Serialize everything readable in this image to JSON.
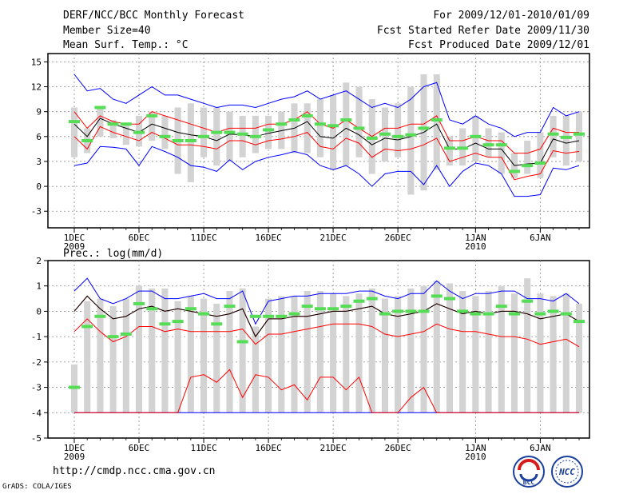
{
  "header": {
    "title": "DERF/NCC/BCC Monthly Forecast",
    "member_size": "Member Size=40",
    "variable": "Mean Surf. Temp.: °C",
    "period": "For 2009/12/01-2010/01/09",
    "start": "Fcst Started Refer Date 2009/11/30",
    "produced": "Fcst Produced Date 2009/12/01"
  },
  "footer": {
    "url": "http://cmdp.ncc.cma.gov.cn",
    "credit": "GrADS: COLA/IGES",
    "logo_bcc": "BCC",
    "logo_ncc": "NCC"
  },
  "colors": {
    "max": "#0000ff",
    "spread": "#ff0000",
    "mean": "#000000",
    "box": "#d3d3d3",
    "obs": "#55dd55"
  },
  "chart_data": [
    {
      "type": "line",
      "subtitle": "",
      "xlabel": "",
      "ylabel": "Mean Surf. Temp. (°C)",
      "ylim": [
        -5,
        16
      ],
      "yticks": [
        -3,
        0,
        3,
        6,
        9,
        12,
        15
      ],
      "x": [
        1,
        2,
        3,
        4,
        5,
        6,
        7,
        8,
        9,
        10,
        11,
        12,
        13,
        14,
        15,
        16,
        17,
        18,
        19,
        20,
        21,
        22,
        23,
        24,
        25,
        26,
        27,
        28,
        29,
        30,
        31,
        32,
        33,
        34,
        35,
        36,
        37,
        38,
        39,
        40
      ],
      "x_tick_labels": [
        {
          "day": 1,
          "label": "1DEC",
          "year": "2009"
        },
        {
          "day": 6,
          "label": "6DEC"
        },
        {
          "day": 11,
          "label": "11DEC"
        },
        {
          "day": 16,
          "label": "16DEC"
        },
        {
          "day": 21,
          "label": "21DEC"
        },
        {
          "day": 26,
          "label": "26DEC"
        },
        {
          "day": 32,
          "label": "1JAN",
          "year": "2010"
        },
        {
          "day": 37,
          "label": "6JAN"
        }
      ],
      "grid": true,
      "series": [
        {
          "name": "ensemble max",
          "color": "#0000ff",
          "values": [
            13.5,
            11.5,
            11.8,
            10.5,
            10.0,
            11.0,
            12.0,
            11.0,
            11.0,
            10.5,
            10.0,
            9.5,
            9.8,
            9.8,
            9.5,
            10.0,
            10.5,
            10.8,
            11.5,
            10.5,
            11.0,
            11.5,
            10.5,
            9.5,
            10.0,
            9.5,
            10.5,
            12.0,
            12.5,
            8.0,
            7.5,
            8.5,
            7.5,
            7.0,
            6.0,
            6.5,
            6.5,
            9.5,
            8.5,
            9.0
          ]
        },
        {
          "name": "upper spread",
          "color": "#ff0000",
          "values": [
            9.0,
            7.0,
            8.5,
            7.8,
            7.5,
            7.5,
            9.0,
            8.5,
            8.0,
            7.5,
            7.0,
            6.5,
            7.0,
            7.0,
            7.0,
            7.5,
            7.5,
            8.0,
            9.0,
            7.5,
            7.0,
            8.0,
            7.0,
            6.0,
            7.0,
            7.0,
            7.5,
            7.5,
            8.5,
            5.5,
            5.5,
            6.0,
            5.5,
            5.5,
            4.0,
            4.0,
            4.5,
            7.0,
            6.5,
            6.5
          ]
        },
        {
          "name": "ensemble mean",
          "color": "#000000",
          "values": [
            7.5,
            6.0,
            8.2,
            7.5,
            7.0,
            6.5,
            7.5,
            7.0,
            6.5,
            6.2,
            6.0,
            5.5,
            6.3,
            6.2,
            6.0,
            6.4,
            6.7,
            7.0,
            7.8,
            6.0,
            5.8,
            7.0,
            6.2,
            5.0,
            5.8,
            5.6,
            6.0,
            6.5,
            7.5,
            4.5,
            4.5,
            5.2,
            4.5,
            4.5,
            2.5,
            2.7,
            2.8,
            5.7,
            5.2,
            5.5
          ]
        },
        {
          "name": "lower spread",
          "color": "#ff0000",
          "values": [
            6.0,
            4.5,
            7.2,
            6.5,
            6.0,
            5.5,
            6.5,
            5.8,
            5.0,
            5.0,
            4.8,
            4.5,
            5.5,
            5.5,
            5.0,
            5.5,
            5.7,
            6.0,
            6.5,
            4.8,
            4.5,
            5.8,
            5.2,
            3.5,
            4.5,
            4.3,
            4.5,
            5.0,
            5.8,
            3.0,
            3.5,
            4.0,
            3.5,
            3.5,
            0.8,
            1.2,
            1.5,
            4.3,
            4.0,
            4.2
          ]
        },
        {
          "name": "ensemble min",
          "color": "#0000ff",
          "values": [
            2.5,
            2.8,
            4.8,
            4.7,
            4.5,
            2.5,
            4.8,
            4.2,
            3.5,
            2.5,
            2.3,
            1.8,
            3.2,
            2.0,
            3.0,
            3.5,
            3.8,
            4.2,
            3.8,
            2.5,
            2.0,
            2.5,
            1.5,
            0.0,
            1.5,
            1.8,
            1.8,
            0.2,
            2.5,
            0.0,
            1.8,
            2.8,
            2.5,
            1.5,
            -1.2,
            -1.2,
            -1.0,
            2.2,
            2.0,
            2.5
          ]
        }
      ],
      "boxes": {
        "name": "ensemble range box",
        "low": [
          3.5,
          4.0,
          6.0,
          5.8,
          5.0,
          4.8,
          5.5,
          4.5,
          1.5,
          0.5,
          3.5,
          2.5,
          3.0,
          3.5,
          4.0,
          4.5,
          4.5,
          4.0,
          4.0,
          3.5,
          2.0,
          2.5,
          3.5,
          1.5,
          3.0,
          3.5,
          -1.0,
          -0.5,
          2.0,
          2.5,
          2.5,
          3.0,
          3.5,
          1.5,
          1.0,
          1.5,
          1.0,
          3.5,
          2.5,
          3.0
        ],
        "high": [
          9.5,
          7.0,
          9.5,
          8.0,
          7.5,
          8.5,
          9.0,
          8.5,
          9.5,
          10.0,
          9.5,
          9.5,
          9.0,
          8.5,
          8.5,
          8.5,
          9.0,
          10.0,
          10.0,
          10.5,
          11.0,
          12.5,
          12.0,
          10.5,
          9.5,
          10.0,
          12.0,
          13.5,
          13.5,
          6.0,
          7.0,
          8.5,
          7.0,
          6.5,
          4.0,
          5.5,
          6.5,
          8.5,
          8.5,
          9.0
        ]
      },
      "observed": {
        "name": "observation",
        "values": [
          7.8,
          5.5,
          9.5,
          7.5,
          7.5,
          6.5,
          8.5,
          6.0,
          5.5,
          5.5,
          6.0,
          6.5,
          6.5,
          6.3,
          6.0,
          6.8,
          7.5,
          8.0,
          8.5,
          7.5,
          7.3,
          8.0,
          7.0,
          5.8,
          6.3,
          6.0,
          6.2,
          7.0,
          8.0,
          4.6,
          4.6,
          6.0,
          5.0,
          5.0,
          1.8,
          2.5,
          2.8,
          6.3,
          5.9,
          6.3
        ]
      }
    },
    {
      "type": "line",
      "subtitle": "Prec.: log(mm/d)",
      "xlabel": "",
      "ylabel": "Prec. log(mm/d)",
      "ylim": [
        -5,
        2
      ],
      "yticks": [
        -5,
        -4,
        -3,
        -2,
        -1,
        0,
        1,
        2
      ],
      "x": [
        1,
        2,
        3,
        4,
        5,
        6,
        7,
        8,
        9,
        10,
        11,
        12,
        13,
        14,
        15,
        16,
        17,
        18,
        19,
        20,
        21,
        22,
        23,
        24,
        25,
        26,
        27,
        28,
        29,
        30,
        31,
        32,
        33,
        34,
        35,
        36,
        37,
        38,
        39,
        40
      ],
      "x_tick_labels": [
        {
          "day": 1,
          "label": "1DEC",
          "year": "2009"
        },
        {
          "day": 6,
          "label": "6DEC"
        },
        {
          "day": 11,
          "label": "11DEC"
        },
        {
          "day": 16,
          "label": "16DEC"
        },
        {
          "day": 21,
          "label": "21DEC"
        },
        {
          "day": 26,
          "label": "26DEC"
        },
        {
          "day": 32,
          "label": "1JAN",
          "year": "2010"
        },
        {
          "day": 37,
          "label": "6JAN"
        }
      ],
      "grid": true,
      "series": [
        {
          "name": "ensemble max",
          "color": "#0000ff",
          "values": [
            0.8,
            1.3,
            0.5,
            0.3,
            0.5,
            0.8,
            0.8,
            0.5,
            0.5,
            0.6,
            0.7,
            0.5,
            0.5,
            0.8,
            -0.5,
            0.4,
            0.5,
            0.6,
            0.6,
            0.7,
            0.7,
            0.7,
            0.8,
            0.8,
            0.6,
            0.5,
            0.7,
            0.7,
            1.2,
            0.8,
            0.5,
            0.7,
            0.7,
            0.8,
            0.8,
            0.5,
            0.5,
            0.4,
            0.7,
            0.3
          ]
        },
        {
          "name": "upper spread",
          "color": "#ff0000",
          "values": [
            0.0,
            0.6,
            0.1,
            -0.3,
            -0.2,
            0.1,
            0.2,
            0.0,
            0.1,
            0.0,
            -0.1,
            -0.2,
            -0.1,
            0.1,
            -1.0,
            -0.3,
            -0.3,
            -0.2,
            -0.2,
            -0.1,
            0.0,
            0.0,
            0.1,
            0.2,
            -0.1,
            -0.2,
            -0.1,
            0.0,
            0.3,
            0.1,
            -0.1,
            0.0,
            -0.1,
            0.0,
            0.0,
            -0.1,
            -0.3,
            -0.2,
            -0.1,
            -0.4
          ]
        },
        {
          "name": "ensemble mean",
          "color": "#000000",
          "values": [
            0.0,
            0.6,
            0.1,
            -0.3,
            -0.2,
            0.1,
            0.2,
            0.0,
            0.1,
            0.0,
            -0.1,
            -0.2,
            -0.1,
            0.1,
            -1.0,
            -0.3,
            -0.3,
            -0.2,
            -0.2,
            -0.1,
            0.0,
            0.0,
            0.1,
            0.2,
            -0.1,
            -0.2,
            -0.1,
            0.0,
            0.3,
            0.1,
            -0.1,
            0.0,
            -0.1,
            0.0,
            0.0,
            -0.1,
            -0.3,
            -0.2,
            -0.1,
            -0.4
          ]
        },
        {
          "name": "lower spread",
          "color": "#ff0000",
          "values": [
            -0.8,
            -0.3,
            -0.8,
            -1.2,
            -1.0,
            -0.6,
            -0.6,
            -0.8,
            -0.7,
            -0.8,
            -0.8,
            -0.8,
            -0.8,
            -0.7,
            -1.3,
            -0.9,
            -0.9,
            -0.8,
            -0.7,
            -0.6,
            -0.5,
            -0.5,
            -0.5,
            -0.6,
            -0.9,
            -1.0,
            -0.9,
            -0.8,
            -0.5,
            -0.7,
            -0.8,
            -0.8,
            -0.9,
            -1.0,
            -1.0,
            -1.1,
            -1.3,
            -1.2,
            -1.1,
            -1.4
          ]
        },
        {
          "name": "ensemble min",
          "color": "#0000ff",
          "values": [
            -4,
            -4,
            -4,
            -4,
            -4,
            -4,
            -4,
            -4,
            -4,
            -4,
            -4,
            -4,
            -4,
            -4,
            -4,
            -4,
            -4,
            -4,
            -4,
            -4,
            -4,
            -4,
            -4,
            -4,
            -4,
            -4,
            -4,
            -4,
            -4,
            -4,
            -4,
            -4,
            -4,
            -4,
            -4,
            -4,
            -4,
            -4,
            -4,
            -4
          ]
        },
        {
          "name": "low tail",
          "color": "#ff0000",
          "values": [
            -4,
            -4,
            -4,
            -4,
            -4,
            -4,
            -4,
            -4,
            -4,
            -2.6,
            -2.5,
            -2.8,
            -2.3,
            -3.4,
            -2.5,
            -2.6,
            -3.1,
            -2.9,
            -3.5,
            -2.6,
            -2.6,
            -3.1,
            -2.6,
            -4,
            -4,
            -4,
            -3.4,
            -3.0,
            -4,
            -4,
            -4,
            -4,
            -4,
            -4,
            -4,
            -4,
            -4,
            -4,
            -4,
            -4
          ]
        }
      ],
      "boxes": {
        "name": "ensemble range box",
        "low": [
          -4,
          -4,
          -4,
          -4,
          -4,
          -4,
          -4,
          -4,
          -4,
          -4,
          -4,
          -4,
          -4,
          -4,
          -4,
          -4,
          -4,
          -4,
          -4,
          -4,
          -4,
          -4,
          -4,
          -4,
          -4,
          -4,
          -4,
          -4,
          -4,
          -4,
          -4,
          -4,
          -4,
          -4,
          -4,
          -4,
          -4,
          -4,
          -4,
          -4
        ],
        "high": [
          -2.1,
          0.4,
          0.5,
          0.2,
          0.5,
          1.0,
          0.9,
          0.9,
          0.4,
          0.6,
          0.5,
          0.3,
          0.8,
          0.9,
          -0.6,
          0.5,
          0.6,
          0.6,
          0.8,
          0.8,
          0.7,
          0.6,
          0.7,
          0.9,
          0.5,
          0.6,
          0.9,
          1.0,
          1.2,
          1.1,
          0.8,
          0.6,
          0.8,
          1.0,
          0.7,
          1.3,
          0.7,
          0.6,
          0.7,
          0.3
        ]
      },
      "observed": {
        "name": "observation",
        "values": [
          -3.0,
          -0.6,
          -0.2,
          -1.0,
          -0.9,
          0.3,
          0.1,
          -0.5,
          -0.4,
          0.1,
          -0.1,
          -0.5,
          0.2,
          -1.2,
          -0.2,
          -0.2,
          -0.2,
          -0.1,
          0.2,
          0.1,
          0.1,
          0.2,
          0.4,
          0.5,
          -0.1,
          0.0,
          0.0,
          0.0,
          0.6,
          0.5,
          0.0,
          -0.1,
          -0.1,
          0.2,
          -0.1,
          0.4,
          -0.1,
          0.0,
          -0.1,
          -0.4
        ]
      }
    }
  ]
}
